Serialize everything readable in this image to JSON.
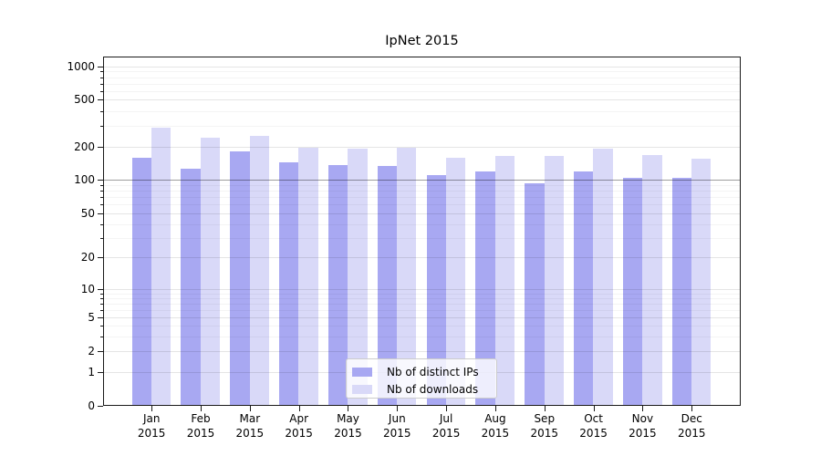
{
  "title": "IpNet 2015",
  "chart_data": {
    "type": "bar",
    "title": "IpNet 2015",
    "yscale": "symlog",
    "grid": true,
    "legend_position": "lower-center-inside",
    "yticks": [
      0,
      1,
      2,
      5,
      10,
      20,
      50,
      100,
      200,
      500,
      1000
    ],
    "ylim": [
      0,
      1000
    ],
    "xlabel": "",
    "ylabel": "",
    "year": "2015",
    "months": [
      "Jan",
      "Feb",
      "Mar",
      "Apr",
      "May",
      "Jun",
      "Jul",
      "Aug",
      "Sep",
      "Oct",
      "Nov",
      "Dec"
    ],
    "series": [
      {
        "key": "distinct-ips",
        "name": "Nb of distinct IPs",
        "color": "#a8a8f2",
        "values": [
          160,
          126,
          183,
          145,
          137,
          134,
          110,
          118,
          92,
          120,
          103,
          103
        ]
      },
      {
        "key": "downloads",
        "name": "Nb of downloads",
        "color": "#d9d9f8",
        "values": [
          290,
          238,
          247,
          197,
          192,
          197,
          158,
          165,
          165,
          193,
          167,
          157
        ]
      }
    ]
  }
}
